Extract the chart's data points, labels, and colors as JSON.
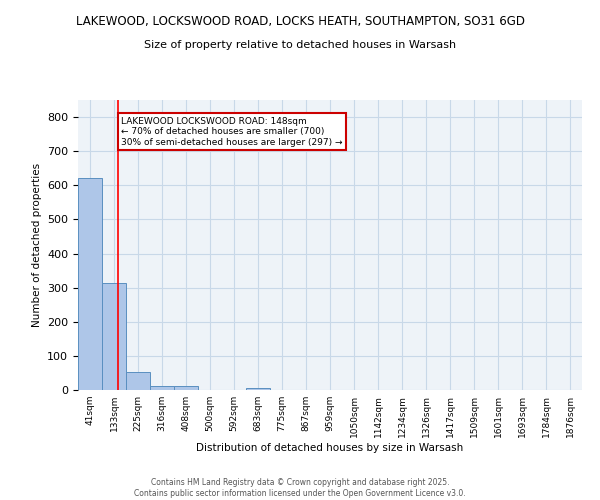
{
  "title1": "LAKEWOOD, LOCKSWOOD ROAD, LOCKS HEATH, SOUTHAMPTON, SO31 6GD",
  "title2": "Size of property relative to detached houses in Warsash",
  "xlabel": "Distribution of detached houses by size in Warsash",
  "ylabel": "Number of detached properties",
  "bins": [
    "41sqm",
    "133sqm",
    "225sqm",
    "316sqm",
    "408sqm",
    "500sqm",
    "592sqm",
    "683sqm",
    "775sqm",
    "867sqm",
    "959sqm",
    "1050sqm",
    "1142sqm",
    "1234sqm",
    "1326sqm",
    "1417sqm",
    "1509sqm",
    "1601sqm",
    "1693sqm",
    "1784sqm",
    "1876sqm"
  ],
  "values": [
    620,
    315,
    52,
    11,
    12,
    0,
    0,
    6,
    0,
    0,
    0,
    0,
    0,
    0,
    0,
    0,
    0,
    0,
    0,
    0,
    0
  ],
  "bar_color": "#aec6e8",
  "bar_edge_color": "#5a8fc0",
  "grid_color": "#c8d8e8",
  "background_color": "#eef3f8",
  "red_line_x": 1.15,
  "annotation_text": "LAKEWOOD LOCKSWOOD ROAD: 148sqm\n← 70% of detached houses are smaller (700)\n30% of semi-detached houses are larger (297) →",
  "annotation_box_color": "#ffffff",
  "annotation_edge_color": "#cc0000",
  "ylim": [
    0,
    850
  ],
  "yticks": [
    0,
    100,
    200,
    300,
    400,
    500,
    600,
    700,
    800
  ],
  "footer1": "Contains HM Land Registry data © Crown copyright and database right 2025.",
  "footer2": "Contains public sector information licensed under the Open Government Licence v3.0."
}
